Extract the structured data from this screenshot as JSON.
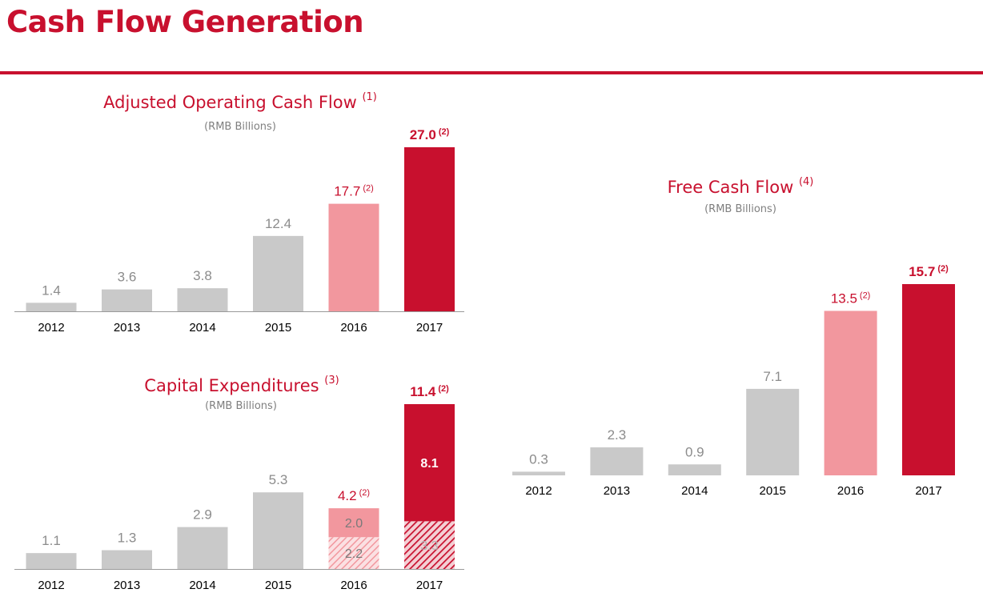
{
  "page": {
    "title": "Cash Flow Generation"
  },
  "colors": {
    "accent": "#c8102e",
    "grey_bar": "#c9c9c9",
    "pink_bar": "#f2979e",
    "red_bar": "#c8102e",
    "grey_label": "#8c8c8c"
  },
  "chart_data": [
    {
      "id": "aocf",
      "type": "bar",
      "title": "Adjusted Operating Cash Flow",
      "title_note": "(1)",
      "subtitle": "(RMB Billions)",
      "categories": [
        "2012",
        "2013",
        "2014",
        "2015",
        "2016",
        "2017"
      ],
      "values": [
        1.4,
        3.6,
        3.8,
        12.4,
        17.7,
        27.0
      ],
      "value_labels": [
        "1.4",
        "3.6",
        "3.8",
        "12.4",
        "17.7",
        "27.0"
      ],
      "value_notes": [
        "",
        "",
        "",
        "",
        "(2)",
        "(2)"
      ],
      "bar_styles": [
        "grey",
        "grey",
        "grey",
        "grey",
        "pink",
        "red"
      ],
      "ylim": [
        0,
        27.0
      ],
      "grid": false,
      "legend": "none"
    },
    {
      "id": "capex",
      "type": "bar",
      "stacked": true,
      "title": "Capital Expenditures",
      "title_note": "(3)",
      "subtitle": "(RMB Billions)",
      "categories": [
        "2012",
        "2013",
        "2014",
        "2015",
        "2016",
        "2017"
      ],
      "values": [
        1.1,
        1.3,
        2.9,
        5.3,
        4.2,
        11.4
      ],
      "value_labels": [
        "1.1",
        "1.3",
        "2.9",
        "5.3",
        "4.2",
        "11.4"
      ],
      "value_notes": [
        "",
        "",
        "",
        "",
        "(2)",
        "(2)"
      ],
      "bar_styles": [
        "grey",
        "grey",
        "grey",
        "grey",
        "pink",
        "red"
      ],
      "segments": {
        "2016": [
          {
            "value": 2.2,
            "label": "2.2",
            "style": "pink-hatched"
          },
          {
            "value": 2.0,
            "label": "2.0",
            "style": "pink"
          }
        ],
        "2017": [
          {
            "value": 3.3,
            "label": "3.3",
            "style": "red-hatched"
          },
          {
            "value": 8.1,
            "label": "8.1",
            "style": "red"
          }
        ]
      },
      "ylim": [
        0,
        11.4
      ],
      "grid": false,
      "legend": "none"
    },
    {
      "id": "fcf",
      "type": "bar",
      "title": "Free Cash Flow",
      "title_note": "(4)",
      "subtitle": "(RMB Billions)",
      "categories": [
        "2012",
        "2013",
        "2014",
        "2015",
        "2016",
        "2017"
      ],
      "values": [
        0.3,
        2.3,
        0.9,
        7.1,
        13.5,
        15.7
      ],
      "value_labels": [
        "0.3",
        "2.3",
        "0.9",
        "7.1",
        "13.5",
        "15.7"
      ],
      "value_notes": [
        "",
        "",
        "",
        "",
        "(2)",
        "(2)"
      ],
      "bar_styles": [
        "grey",
        "grey",
        "grey",
        "grey",
        "pink",
        "red"
      ],
      "ylim": [
        0,
        15.7
      ],
      "grid": false,
      "legend": "none"
    }
  ]
}
